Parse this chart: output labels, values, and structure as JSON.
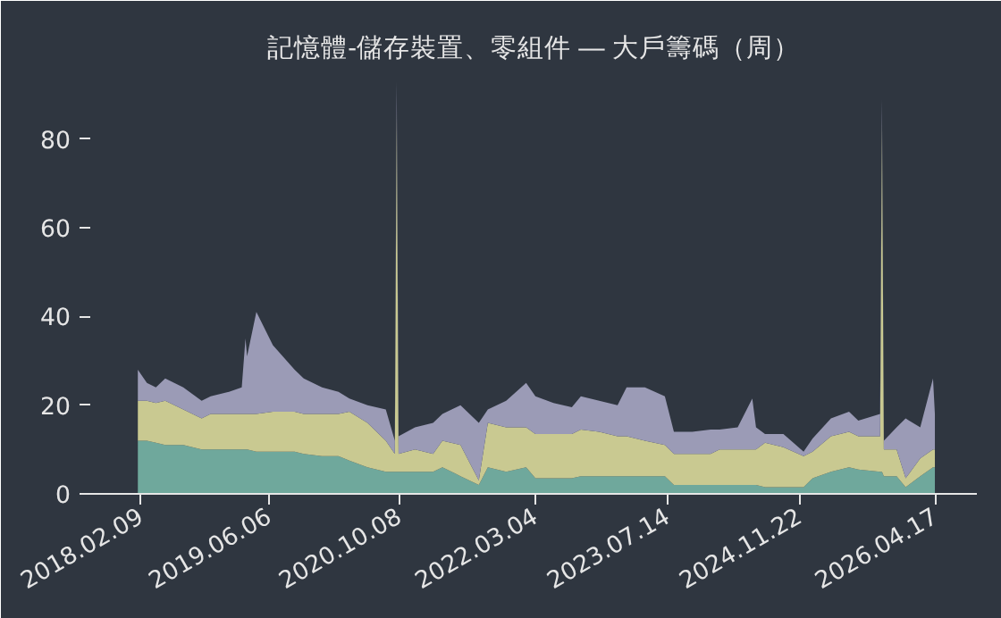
{
  "chart_data": {
    "type": "area",
    "stacked": true,
    "title": "記憶體-儲存裝置、零組件 — 大戶籌碼（周）",
    "x": [
      "2018-01-30",
      "2018-03-05",
      "2018-04-08",
      "2018-04-25",
      "2018-05-13",
      "2018-07-20",
      "2018-09-27",
      "2018-10-14",
      "2018-10-31",
      "2019-01-08",
      "2019-02-25",
      "2019-03-11",
      "2019-03-17",
      "2019-04-04",
      "2019-04-21",
      "2019-06-22",
      "2019-09-12",
      "2019-09-29",
      "2019-10-16",
      "2019-12-24",
      "2020-02-24",
      "2020-03-19",
      "2020-04-05",
      "2020-06-12",
      "2020-08-20",
      "2020-09-06",
      "2020-09-23",
      "2020-09-30",
      "2020-10-07",
      "2020-12-08",
      "2021-02-14",
      "2021-03-04",
      "2021-03-21",
      "2021-05-28",
      "2021-08-05",
      "2021-08-22",
      "2021-09-08",
      "2021-11-16",
      "2022-01-30",
      "2022-02-17",
      "2022-03-06",
      "2022-05-13",
      "2022-07-21",
      "2022-08-07",
      "2022-08-24",
      "2022-11-01",
      "2023-01-09",
      "2023-01-26",
      "2023-02-12",
      "2023-04-22",
      "2023-07-06",
      "2023-07-23",
      "2023-08-09",
      "2023-10-17",
      "2023-12-25",
      "2024-01-11",
      "2024-01-28",
      "2024-04-05",
      "2024-05-30",
      "2024-06-13",
      "2024-06-30",
      "2024-07-17",
      "2024-09-24",
      "2024-12-09",
      "2024-12-26",
      "2025-01-12",
      "2025-03-22",
      "2025-05-29",
      "2025-06-15",
      "2025-07-03",
      "2025-09-23",
      "2025-09-30",
      "2025-10-07",
      "2025-11-24",
      "2025-12-11",
      "2025-12-28",
      "2026-02-21",
      "2026-04-10",
      "2026-04-17"
    ],
    "series": [
      {
        "color": "#6fa89c",
        "values": [
          12,
          12,
          11.5,
          null,
          11,
          11,
          10,
          null,
          10,
          10,
          10,
          10,
          10,
          null,
          9.5,
          9.5,
          9.5,
          null,
          9,
          8.5,
          8.5,
          null,
          7.5,
          6,
          5,
          null,
          5,
          5,
          5,
          5,
          5,
          null,
          6,
          4,
          2,
          null,
          6,
          5,
          6,
          null,
          3.5,
          3.5,
          3.5,
          null,
          4,
          4,
          4,
          null,
          4,
          4,
          4,
          null,
          2,
          2,
          2,
          null,
          2,
          2,
          2,
          2,
          null,
          1.5,
          1.5,
          1.5,
          null,
          3.5,
          5,
          6,
          null,
          5.5,
          5,
          5,
          4,
          4,
          null,
          1.5,
          4,
          6,
          6
        ]
      },
      {
        "color": "#c9c991",
        "values": [
          9,
          9,
          9,
          null,
          10,
          8,
          7,
          null,
          8,
          8,
          8,
          8,
          8,
          null,
          8.5,
          9,
          9,
          null,
          9,
          9.5,
          9.5,
          null,
          11,
          10,
          7,
          null,
          4,
          81,
          4,
          5,
          4,
          null,
          6,
          7,
          1,
          null,
          10,
          10,
          9,
          null,
          10,
          10,
          10,
          null,
          10.5,
          10,
          9,
          null,
          9,
          8,
          7,
          null,
          7,
          7,
          7,
          null,
          8,
          8,
          8,
          8,
          null,
          10,
          9,
          7,
          null,
          6,
          8,
          8,
          null,
          7.5,
          8,
          79,
          6,
          6,
          null,
          2,
          4,
          4,
          4
        ]
      },
      {
        "color": "#9b9bb6",
        "values": [
          7,
          4,
          3.5,
          null,
          5,
          5,
          4,
          null,
          4,
          5,
          6,
          17,
          13,
          null,
          23,
          15,
          9.5,
          null,
          8,
          6,
          5,
          null,
          3,
          4,
          7,
          null,
          3,
          7,
          4,
          5,
          7,
          null,
          6,
          9,
          13,
          null,
          3,
          6,
          10,
          null,
          8.5,
          7,
          6,
          null,
          7.5,
          7,
          7,
          null,
          11,
          12,
          11,
          null,
          5,
          5,
          5.5,
          null,
          4.5,
          5,
          11.5,
          5,
          null,
          2,
          3,
          1,
          null,
          3,
          4,
          4.5,
          null,
          3.5,
          5,
          5,
          2,
          5,
          null,
          13.5,
          7,
          16,
          8
        ]
      }
    ],
    "xlim": [
      "2017-08-04",
      "2026-09-22"
    ],
    "xticks": [
      {
        "value": "2018-02-09",
        "label": "2018.02.09"
      },
      {
        "value": "2019-06-06",
        "label": "2019.06.06"
      },
      {
        "value": "2020-10-08",
        "label": "2020.10.08"
      },
      {
        "value": "2022-03-04",
        "label": "2022.03.04"
      },
      {
        "value": "2023-07-14",
        "label": "2023.07.14"
      },
      {
        "value": "2024-11-22",
        "label": "2024.11.22"
      },
      {
        "value": "2026-04-17",
        "label": "2026.04.17"
      }
    ],
    "ylim": [
      0,
      95
    ],
    "yticks": [
      0,
      20,
      40,
      60,
      80
    ],
    "grid": false
  }
}
